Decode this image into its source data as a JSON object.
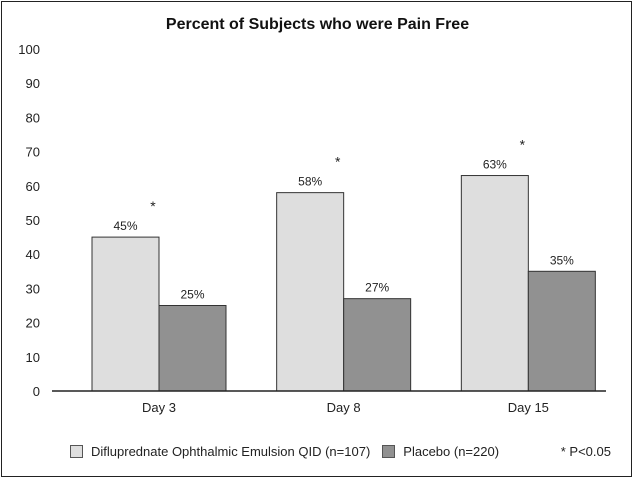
{
  "chart_data": {
    "type": "bar",
    "title": "Percent of Subjects who were Pain Free",
    "categories": [
      "Day 3",
      "Day 8",
      "Day 15"
    ],
    "series": [
      {
        "name": "Difluprednate Ophthalmic Emulsion QID (n=107)",
        "values": [
          45,
          58,
          63
        ],
        "color": "#dedede",
        "labels": [
          "45%",
          "58%",
          "63%"
        ],
        "significance": [
          "*",
          "*",
          "*"
        ]
      },
      {
        "name": "Placebo (n=220)",
        "values": [
          25,
          27,
          35
        ],
        "color": "#919191",
        "labels": [
          "25%",
          "27%",
          "35%"
        ]
      }
    ],
    "ylim": [
      0,
      100
    ],
    "yticks": [
      "0",
      "10",
      "20",
      "30",
      "40",
      "50",
      "60",
      "70",
      "80",
      "90",
      "100"
    ],
    "grid": false,
    "legend_position": "bottom",
    "footnote": "P<0.05",
    "footnote_marker": "*"
  }
}
